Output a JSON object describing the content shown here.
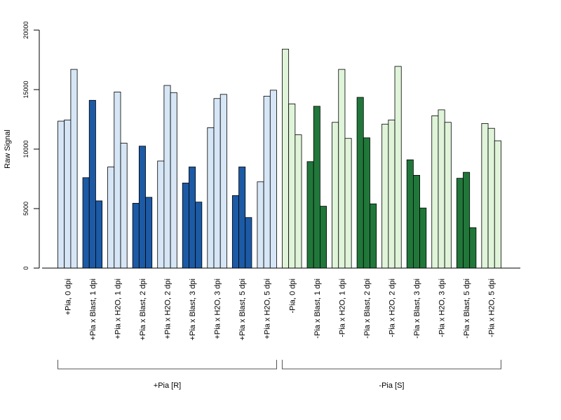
{
  "chart_data": {
    "type": "bar",
    "title": "",
    "ylabel": "Raw Signal",
    "xlabel": "",
    "ylim": [
      0,
      20000
    ],
    "yticks": [
      0,
      5000,
      10000,
      15000,
      20000
    ],
    "grid": false,
    "legend": "none",
    "categories": [
      "+Pia, 0 dpi",
      "+Pia x Blast, 1 dpi",
      "+Pia x H2O, 1 dpi",
      "+Pia x Blast, 2 dpi",
      "+Pia x H2O, 2 dpi",
      "+Pia x Blast, 3 dpi",
      "+Pia x H2O, 3 dpi",
      "+Pia x Blast, 5 dpi",
      "+Pia x H2O, 5 dpi",
      "-Pia, 0 dpi",
      "-Pia x Blast, 1 dpi",
      "-Pia x H2O, 1 dpi",
      "-Pia x Blast, 2 dpi",
      "-Pia x H2O, 2 dpi",
      "-Pia x Blast, 3 dpi",
      "-Pia x H2O, 3 dpi",
      "-Pia x Blast, 5 dpi",
      "-Pia x H2O, 5 dpi"
    ],
    "values": [
      [
        12350,
        12450,
        16700
      ],
      [
        7600,
        14100,
        5650
      ],
      [
        8500,
        14800,
        10500
      ],
      [
        5450,
        10250,
        5950
      ],
      [
        9000,
        15350,
        14750
      ],
      [
        7150,
        8500,
        5550
      ],
      [
        11800,
        14250,
        14600
      ],
      [
        6100,
        8500,
        4250
      ],
      [
        7250,
        14450,
        14950
      ],
      [
        18400,
        13800,
        11200
      ],
      [
        8950,
        13600,
        5200
      ],
      [
        12250,
        16700,
        10900
      ],
      [
        14350,
        10950,
        5400
      ],
      [
        12100,
        12450,
        16950
      ],
      [
        9100,
        7800,
        5050
      ],
      [
        12800,
        13300,
        12250
      ],
      [
        7550,
        8050,
        3400
      ],
      [
        12150,
        11750,
        10700
      ]
    ],
    "bar_colors": [
      "#d6e6f6",
      "#1c5aa6",
      "#d6e6f6",
      "#1c5aa6",
      "#d6e6f6",
      "#1c5aa6",
      "#d6e6f6",
      "#1c5aa6",
      "#d6e6f6",
      "#dff4d9",
      "#21773a",
      "#dff4d9",
      "#21773a",
      "#dff4d9",
      "#21773a",
      "#dff4d9",
      "#21773a",
      "#dff4d9"
    ],
    "groups": [
      {
        "label": "+Pia [R]",
        "first": 0,
        "last": 8
      },
      {
        "label": "-Pia [S]",
        "first": 9,
        "last": 17
      }
    ]
  }
}
